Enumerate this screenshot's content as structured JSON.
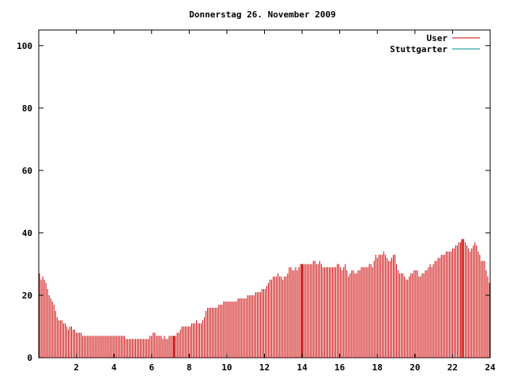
{
  "chart_data": {
    "type": "bar",
    "title": "Donnerstag 26. November 2009",
    "xlim": [
      0,
      24
    ],
    "ylim": [
      0,
      105
    ],
    "x_ticks": [
      2,
      4,
      6,
      8,
      10,
      12,
      14,
      16,
      18,
      20,
      22,
      24
    ],
    "y_ticks": [
      0,
      20,
      40,
      60,
      80,
      100
    ],
    "legend_position": "top-right",
    "series": [
      {
        "name": "User",
        "color": "#cc0000",
        "values": [
          27,
          25,
          26,
          25,
          24,
          22,
          20,
          19,
          18,
          17,
          15,
          13,
          12,
          12,
          12,
          11,
          11,
          10,
          9,
          10,
          10,
          9,
          9,
          8,
          8,
          8,
          8,
          7,
          7,
          7,
          7,
          7,
          7,
          7,
          7,
          7,
          7,
          7,
          7,
          7,
          7,
          7,
          7,
          7,
          7,
          7,
          7,
          7,
          7,
          7,
          7,
          7,
          7,
          7,
          6,
          6,
          6,
          6,
          6,
          6,
          6,
          6,
          6,
          6,
          6,
          6,
          6,
          6,
          6,
          7,
          7,
          8,
          8,
          7,
          7,
          7,
          7,
          6,
          7,
          6,
          6,
          7,
          7,
          7,
          7,
          7,
          8,
          8,
          9,
          10,
          10,
          10,
          10,
          10,
          10,
          11,
          11,
          11,
          12,
          11,
          11,
          11,
          12,
          13,
          15,
          16,
          16,
          16,
          16,
          16,
          16,
          16,
          17,
          17,
          17,
          18,
          18,
          18,
          18,
          18,
          18,
          18,
          18,
          18,
          19,
          19,
          19,
          19,
          19,
          19,
          20,
          20,
          20,
          20,
          20,
          21,
          21,
          21,
          21,
          22,
          22,
          22,
          23,
          24,
          25,
          25,
          26,
          26,
          26,
          27,
          26,
          26,
          25,
          26,
          26,
          27,
          29,
          29,
          28,
          28,
          29,
          28,
          29,
          30,
          30,
          30,
          30,
          30,
          30,
          30,
          30,
          31,
          31,
          30,
          30,
          31,
          30,
          29,
          29,
          29,
          29,
          29,
          29,
          29,
          29,
          29,
          30,
          30,
          29,
          28,
          29,
          30,
          28,
          26,
          27,
          28,
          28,
          27,
          27,
          28,
          28,
          29,
          29,
          29,
          29,
          29,
          30,
          30,
          29,
          31,
          33,
          32,
          33,
          33,
          33,
          34,
          33,
          32,
          31,
          31,
          32,
          33,
          33,
          30,
          28,
          27,
          27,
          27,
          26,
          25,
          25,
          26,
          27,
          27,
          28,
          28,
          28,
          26,
          26,
          27,
          27,
          28,
          28,
          29,
          30,
          29,
          30,
          31,
          31,
          32,
          32,
          33,
          33,
          33,
          34,
          34,
          34,
          34,
          35,
          35,
          36,
          36,
          37,
          37,
          38,
          38,
          37,
          36,
          35,
          34,
          35,
          36,
          37,
          36,
          34,
          33,
          31,
          31,
          31,
          28,
          26,
          24
        ],
        "highlight_indices": [
          84,
          164,
          264
        ]
      },
      {
        "name": "Stuttgarter",
        "color": "#008b8b",
        "values": []
      }
    ]
  }
}
